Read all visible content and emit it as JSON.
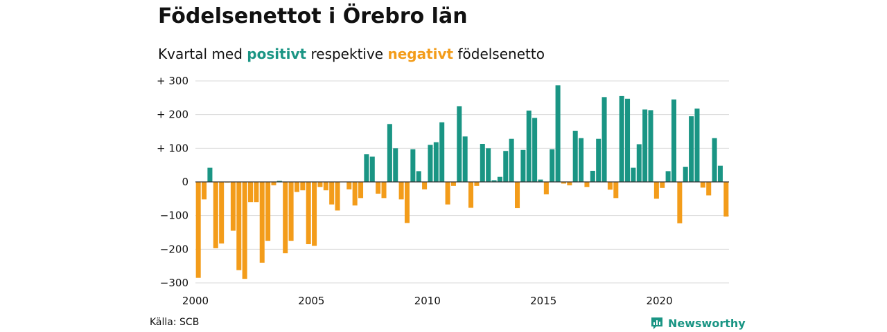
{
  "header": {
    "title": "Födelsenettot i Örebro län",
    "subtitle_prefix": "Kvartal med ",
    "subtitle_positive": "positivt",
    "subtitle_middle": " respektive ",
    "subtitle_negative": "negativt",
    "subtitle_suffix": " födelsenetto"
  },
  "footer": {
    "source": "Källa: SCB",
    "brand": "Newsworthy",
    "brand_icon": "newsworthy-logo-icon"
  },
  "colors": {
    "positive": "#1a9584",
    "negative": "#f39c1a",
    "grid": "#d9d9d9",
    "zero_line": "#333333"
  },
  "chart_data": {
    "type": "bar",
    "title": "Födelsenettot i Örebro län",
    "xlabel": "",
    "ylabel": "",
    "x_start": 2000,
    "periods_per_year": 4,
    "ylim": [
      -300,
      300
    ],
    "yticks": [
      300,
      200,
      100,
      0,
      -100,
      -200,
      -300
    ],
    "ytick_labels": [
      "+ 300",
      "+ 200",
      "+ 100",
      "0",
      "−100",
      "−200",
      "−300"
    ],
    "xticks": [
      2000,
      2005,
      2010,
      2015,
      2020
    ],
    "xtick_labels": [
      "2000",
      "2005",
      "2010",
      "2015",
      "2020"
    ],
    "grid": true,
    "legend": "none",
    "values": [
      -285,
      -52,
      42,
      -197,
      -183,
      -2,
      -145,
      -262,
      -288,
      -60,
      -60,
      -240,
      -175,
      -10,
      3,
      -212,
      -175,
      -30,
      -25,
      -185,
      -190,
      -15,
      -25,
      -67,
      -85,
      0,
      -22,
      -70,
      -48,
      82,
      75,
      -35,
      -48,
      172,
      100,
      -52,
      -122,
      97,
      32,
      -22,
      110,
      118,
      177,
      -67,
      -12,
      225,
      135,
      -77,
      -12,
      113,
      100,
      5,
      15,
      92,
      128,
      -78,
      95,
      212,
      190,
      7,
      -37,
      97,
      287,
      -5,
      -10,
      152,
      130,
      -15,
      33,
      128,
      252,
      -23,
      -48,
      255,
      247,
      42,
      112,
      215,
      213,
      -50,
      -18,
      32,
      245,
      -123,
      45,
      195,
      218,
      -17,
      -40,
      130,
      48,
      -103
    ]
  }
}
